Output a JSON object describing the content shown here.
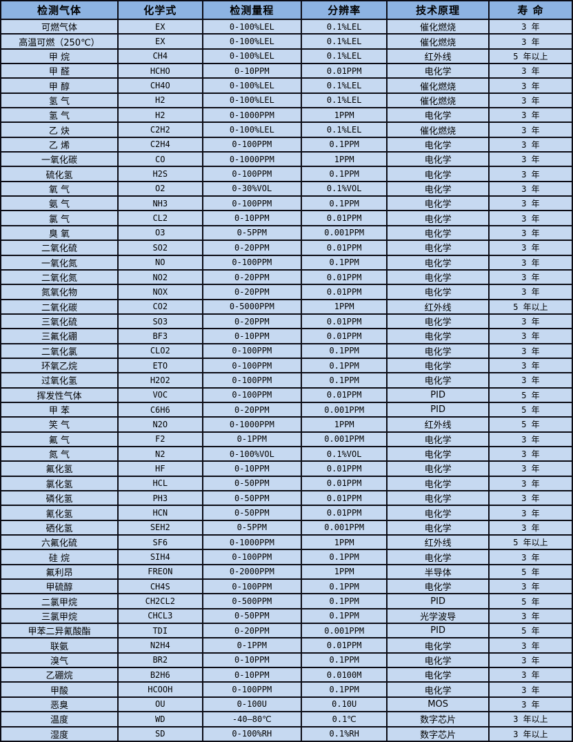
{
  "table": {
    "title": "gas-sensor-specifications",
    "headers": [
      "检测气体",
      "化学式",
      "检测量程",
      "分辨率",
      "技术原理",
      "寿 命"
    ],
    "rows": [
      [
        "可燃气体",
        "EX",
        "0-100%LEL",
        "0.1%LEL",
        "催化燃烧",
        "3 年"
      ],
      [
        "高温可燃（250℃）",
        "EX",
        "0-100%LEL",
        "0.1%LEL",
        "催化燃烧",
        "3 年"
      ],
      [
        "甲 烷",
        "CH4",
        "0-100%LEL",
        "0.1%LEL",
        "红外线",
        "5 年以上"
      ],
      [
        "甲 醛",
        "HCHO",
        "0-10PPM",
        "0.01PPM",
        "电化学",
        "3 年"
      ],
      [
        "甲 醇",
        "CH4O",
        "0-100%LEL",
        "0.1%LEL",
        "催化燃烧",
        "3 年"
      ],
      [
        "氢 气",
        "H2",
        "0-100%LEL",
        "0.1%LEL",
        "催化燃烧",
        "3 年"
      ],
      [
        "氢 气",
        "H2",
        "0-1000PPM",
        "1PPM",
        "电化学",
        "3 年"
      ],
      [
        "乙 炔",
        "C2H2",
        "0-100%LEL",
        "0.1%LEL",
        "催化燃烧",
        "3 年"
      ],
      [
        "乙 烯",
        "C2H4",
        "0-100PPM",
        "0.1PPM",
        "电化学",
        "3 年"
      ],
      [
        "一氧化碳",
        "CO",
        "0-1000PPM",
        "1PPM",
        "电化学",
        "3 年"
      ],
      [
        "硫化氢",
        "H2S",
        "0-100PPM",
        "0.1PPM",
        "电化学",
        "3 年"
      ],
      [
        "氧 气",
        "O2",
        "0-30%VOL",
        "0.1%VOL",
        "电化学",
        "3 年"
      ],
      [
        "氨 气",
        "NH3",
        "0-100PPM",
        "0.1PPM",
        "电化学",
        "3 年"
      ],
      [
        "氯 气",
        "CL2",
        "0-10PPM",
        "0.01PPM",
        "电化学",
        "3 年"
      ],
      [
        "臭 氧",
        "O3",
        "0-5PPM",
        "0.001PPM",
        "电化学",
        "3 年"
      ],
      [
        "二氧化硫",
        "SO2",
        "0-20PPM",
        "0.01PPM",
        "电化学",
        "3 年"
      ],
      [
        "一氧化氮",
        "NO",
        "0-100PPM",
        "0.1PPM",
        "电化学",
        "3 年"
      ],
      [
        "二氧化氮",
        "NO2",
        "0-20PPM",
        "0.01PPM",
        "电化学",
        "3 年"
      ],
      [
        "氮氧化物",
        "NOX",
        "0-20PPM",
        "0.01PPM",
        "电化学",
        "3 年"
      ],
      [
        "二氧化碳",
        "CO2",
        "0-5000PPM",
        "1PPM",
        "红外线",
        "5 年以上"
      ],
      [
        "三氧化硫",
        "SO3",
        "0-20PPM",
        "0.01PPM",
        "电化学",
        "3 年"
      ],
      [
        "三氟化硼",
        "BF3",
        "0-10PPM",
        "0.01PPM",
        "电化学",
        "3 年"
      ],
      [
        "二氧化氯",
        "CLO2",
        "0-100PPM",
        "0.1PPM",
        "电化学",
        "3 年"
      ],
      [
        "环氧乙烷",
        "ETO",
        "0-100PPM",
        "0.1PPM",
        "电化学",
        "3 年"
      ],
      [
        "过氧化氢",
        "H2O2",
        "0-100PPM",
        "0.1PPM",
        "电化学",
        "3 年"
      ],
      [
        "挥发性气体",
        "VOC",
        "0-100PPM",
        "0.01PPM",
        "PID",
        "5 年"
      ],
      [
        "甲 苯",
        "C6H6",
        "0-20PPM",
        "0.001PPM",
        "PID",
        "5 年"
      ],
      [
        "笑 气",
        "N2O",
        "0-1000PPM",
        "1PPM",
        "红外线",
        "5 年"
      ],
      [
        "氟 气",
        "F2",
        "0-1PPM",
        "0.001PPM",
        "电化学",
        "3 年"
      ],
      [
        "氮 气",
        "N2",
        "0-100%VOL",
        "0.1%VOL",
        "电化学",
        "3 年"
      ],
      [
        "氟化氢",
        "HF",
        "0-10PPM",
        "0.01PPM",
        "电化学",
        "3 年"
      ],
      [
        "氯化氢",
        "HCL",
        "0-50PPM",
        "0.01PPM",
        "电化学",
        "3 年"
      ],
      [
        "磷化氢",
        "PH3",
        "0-50PPM",
        "0.01PPM",
        "电化学",
        "3 年"
      ],
      [
        "氰化氢",
        "HCN",
        "0-50PPM",
        "0.01PPM",
        "电化学",
        "3 年"
      ],
      [
        "硒化氢",
        "SEH2",
        "0-5PPM",
        "0.001PPM",
        "电化学",
        "3 年"
      ],
      [
        "六氟化硫",
        "SF6",
        "0-1000PPM",
        "1PPM",
        "红外线",
        "5 年以上"
      ],
      [
        "硅 烷",
        "SIH4",
        "0-100PPM",
        "0.1PPM",
        "电化学",
        "3 年"
      ],
      [
        "氟利昂",
        "FREON",
        "0-2000PPM",
        "1PPM",
        "半导体",
        "5 年"
      ],
      [
        "甲硫醇",
        "CH4S",
        "0-100PPM",
        "0.1PPM",
        "电化学",
        "3 年"
      ],
      [
        "二氯甲烷",
        "CH2CL2",
        "0-500PPM",
        "0.1PPM",
        "PID",
        "5 年"
      ],
      [
        "三氯甲烷",
        "CHCL3",
        "0-50PPM",
        "0.1PPM",
        "光学波导",
        "3 年"
      ],
      [
        "甲苯二异氰酸酯",
        "TDI",
        "0-20PPM",
        "0.001PPM",
        "PID",
        "5 年"
      ],
      [
        "联氨",
        "N2H4",
        "0-1PPM",
        "0.01PPM",
        "电化学",
        "3 年"
      ],
      [
        "溴气",
        "BR2",
        "0-10PPM",
        "0.1PPM",
        "电化学",
        "3 年"
      ],
      [
        "乙硼烷",
        "B2H6",
        "0-10PPM",
        "0.0100M",
        "电化学",
        "3 年"
      ],
      [
        "甲酸",
        "HCOOH",
        "0-100PPM",
        "0.1PPM",
        "电化学",
        "3 年"
      ],
      [
        "恶臭",
        "OU",
        "0-100U",
        "0.10U",
        "MOS",
        "3 年"
      ],
      [
        "温度",
        "WD",
        "-40—80℃",
        "0.1℃",
        "数字芯片",
        "3 年以上"
      ],
      [
        "湿度",
        "SD",
        "0-100%RH",
        "0.1%RH",
        "数字芯片",
        "3 年以上"
      ]
    ]
  },
  "colors": {
    "header_bg": "#8db3e2",
    "row_bg": "#c6d9f1",
    "border": "#0b0b14",
    "text": "#000000"
  }
}
